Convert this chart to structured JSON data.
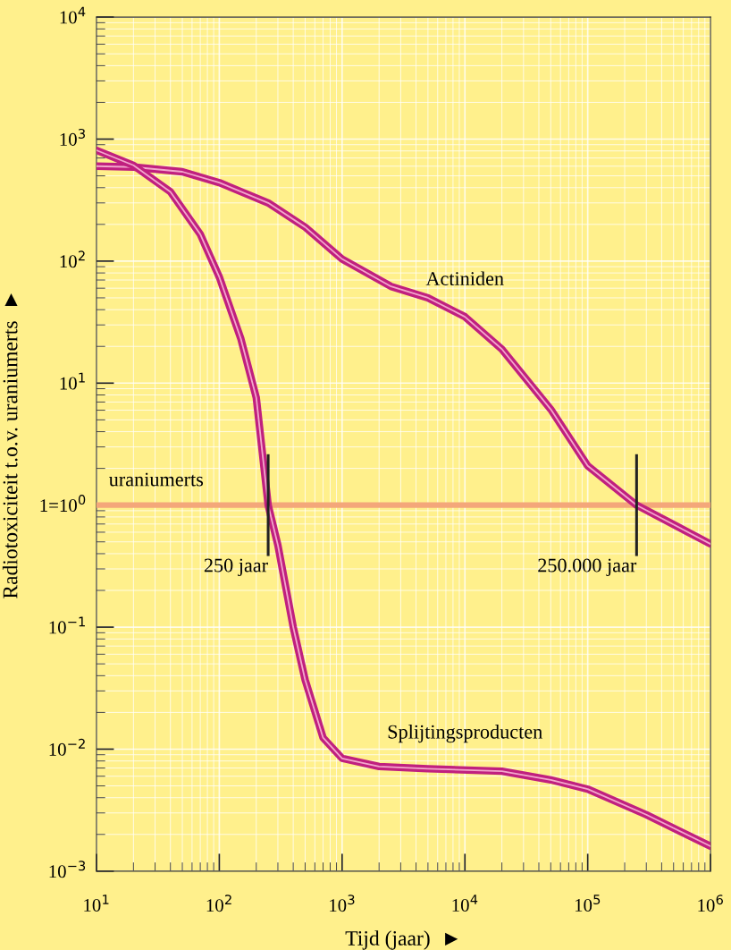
{
  "chart_data": {
    "type": "line",
    "xlabel": "Tijd (jaar)  ►",
    "ylabel": "Radiotoxiciteit t.o.v. uraniumerts  ►",
    "log": "xy",
    "grid": true,
    "legend": false,
    "marker": "none",
    "line_style": "solid",
    "xlim": [
      10,
      1000000
    ],
    "ylim": [
      0.001,
      10000
    ],
    "xticks": [
      {
        "value": 10,
        "label": "10$^{1}$"
      },
      {
        "value": 100,
        "label": "10$^{2}$"
      },
      {
        "value": 1000,
        "label": "10$^{3}$"
      },
      {
        "value": 10000,
        "label": "10$^{4}$"
      },
      {
        "value": 100000,
        "label": "10$^{5}$"
      },
      {
        "value": 1000000,
        "label": "10$^{6}$"
      }
    ],
    "yticks": [
      {
        "value": 0.001,
        "label": "10$^{−3}$"
      },
      {
        "value": 0.01,
        "label": "10$^{−2}$"
      },
      {
        "value": 0.1,
        "label": "10$^{−1}$"
      },
      {
        "value": 1,
        "label": "1=10$^{0}$"
      },
      {
        "value": 10,
        "label": "10$^{1}$"
      },
      {
        "value": 100,
        "label": "10$^{2}$"
      },
      {
        "value": 1000,
        "label": "10$^{3}$"
      },
      {
        "value": 10000,
        "label": "10$^{4}$"
      }
    ],
    "series": [
      {
        "name": "Actiniden",
        "color": "#c0207f",
        "x": [
          10,
          20,
          50,
          100,
          250,
          500,
          1000,
          2500,
          5000,
          10000,
          20000,
          50000,
          100000,
          250000,
          1000000
        ],
        "values": [
          600,
          590,
          540,
          440,
          300,
          190,
          104,
          62,
          50,
          35,
          19,
          6.1,
          2.1,
          1,
          0.48
        ]
      },
      {
        "name": "Splijtingsproducten",
        "color": "#c0207f",
        "x": [
          10,
          20,
          40,
          70,
          100,
          150,
          200,
          250,
          300,
          400,
          500,
          700,
          1000,
          2000,
          5000,
          20000,
          50000,
          100000,
          300000,
          1000000
        ],
        "values": [
          810,
          610,
          370,
          166,
          74,
          23,
          7.6,
          1,
          0.47,
          0.1,
          0.037,
          0.0124,
          0.0084,
          0.0072,
          0.0069,
          0.0066,
          0.0056,
          0.0047,
          0.0029,
          0.0016
        ]
      }
    ],
    "ref_lines": [
      {
        "axis": "y",
        "value": 1,
        "label": "uraniumerts",
        "color": "#f4a77a"
      }
    ],
    "annotations": [
      {
        "text": "250 jaar",
        "x": 250,
        "y": 1
      },
      {
        "text": "250.000 jaar",
        "x": 250000,
        "y": 1
      }
    ]
  }
}
